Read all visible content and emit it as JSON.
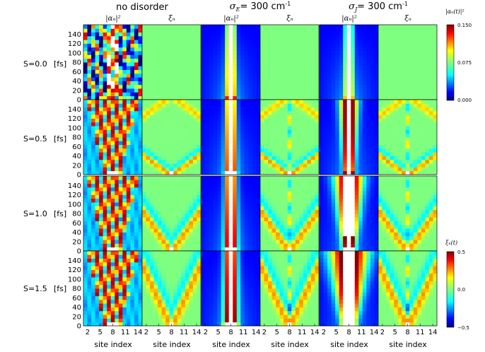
{
  "figure": {
    "column_titles": [
      {
        "text": "no disorder"
      },
      {
        "symbol": "σ",
        "sub": "E",
        "rest": "=  300 cm",
        "sup": "-1"
      },
      {
        "symbol": "σ",
        "sub": "J",
        "rest": "=  300 cm",
        "sup": "-1"
      }
    ],
    "panel_labels": [
      "|αₙ|²",
      "ξₙ",
      "|αₙ|²",
      "ξₙ",
      "|αₙ|²",
      "ξₙ"
    ],
    "row_labels": [
      {
        "s": "S=0.0",
        "unit": "[fs]"
      },
      {
        "s": "S=0.5",
        "unit": "[fs]"
      },
      {
        "s": "S=1.0",
        "unit": "[fs]"
      },
      {
        "s": "S=1.5",
        "unit": "[fs]"
      }
    ],
    "xlabel": "site index",
    "colorbars": [
      {
        "label": "|αₙ(t)|²",
        "ticks": [
          "0.150",
          "0.075",
          "0.000"
        ],
        "range": [
          0,
          0.15
        ]
      },
      {
        "label": "ξₙ(t)",
        "ticks": [
          "0.5",
          "0.0",
          "−0.5"
        ],
        "range": [
          -0.5,
          0.5
        ]
      }
    ]
  },
  "chart_data": {
    "type": "heatmap",
    "panels_grid": {
      "rows": 4,
      "cols": 6
    },
    "x": {
      "label": "site index",
      "ticks": [
        2,
        5,
        8,
        11,
        14
      ],
      "range": [
        1,
        15
      ]
    },
    "y": {
      "label": "[fs]",
      "ticks": [
        0,
        20,
        40,
        60,
        80,
        100,
        120,
        140
      ],
      "range": [
        0,
        160
      ]
    },
    "rows": [
      "S=0.0",
      "S=0.5",
      "S=1.0",
      "S=1.5"
    ],
    "column_groups": [
      "no disorder",
      "σE = 300 cm-1",
      "σJ = 300 cm-1"
    ],
    "column_quantities": [
      "|αₙ|²",
      "ξₙ",
      "|αₙ|²",
      "ξₙ",
      "|αₙ|²",
      "ξₙ"
    ],
    "colormap": "jet",
    "population_color_range": [
      0,
      0.15
    ],
    "displacement_color_range": [
      -0.5,
      0.5
    ],
    "overflow_color": "#ffffff",
    "colors": {
      "low": "#00007f",
      "mid": "#7fff7f",
      "high": "#7f0000",
      "panel_flat": "#7fff7f"
    }
  }
}
